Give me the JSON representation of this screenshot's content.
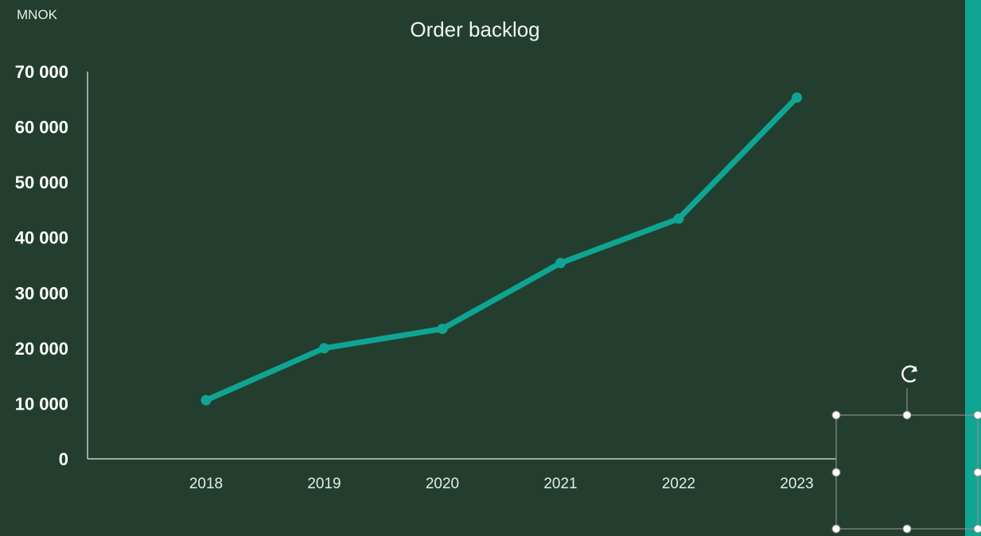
{
  "chart_data": {
    "type": "line",
    "title": "Order backlog",
    "unit_label": "MNOK",
    "xlabel": "",
    "ylabel": "",
    "categories": [
      "2018",
      "2019",
      "2020",
      "2021",
      "2022",
      "2023"
    ],
    "series": [
      {
        "values": [
          10600,
          20000,
          23500,
          35400,
          43400,
          65300
        ]
      }
    ],
    "ylim": [
      0,
      70000
    ],
    "yticks": [
      0,
      10000,
      20000,
      30000,
      40000,
      50000,
      60000,
      70000
    ],
    "ytick_labels": [
      "0",
      "10 000",
      "20 000",
      "30 000",
      "40 000",
      "50 000",
      "60 000",
      "70 000"
    ],
    "grid": false,
    "legend": "none"
  },
  "colors": {
    "background": "#233e2f",
    "line": "#0ea593",
    "accent_strip": "#0ea593",
    "axis": "#e6ebe8",
    "text": "#ffffff"
  },
  "selection_handles": {
    "rotate_icon": "rotate-icon"
  }
}
